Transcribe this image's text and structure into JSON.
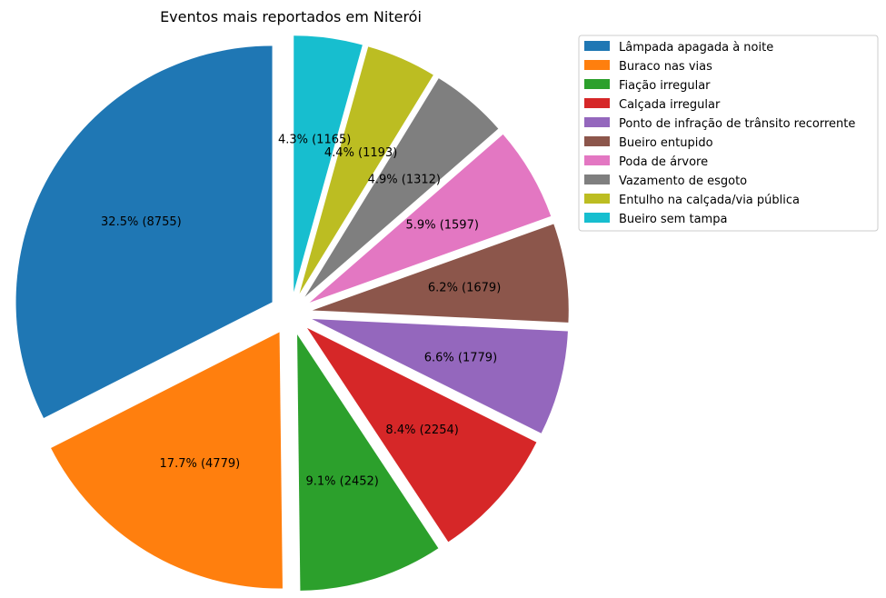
{
  "chart_data": {
    "type": "pie",
    "title": "Eventos mais reportados em Niterói",
    "legend_position": "upper-right-outside",
    "start_angle_deg": 90,
    "direction": "counterclockwise",
    "exploded": true,
    "slices": [
      {
        "name": "Lâmpada apagada à noite",
        "value": 8755,
        "label": "32.5% (8755)",
        "color": "#1f77b4"
      },
      {
        "name": "Buraco nas vias",
        "value": 4779,
        "label": "17.7% (4779)",
        "color": "#ff7f0e"
      },
      {
        "name": "Fiação irregular",
        "value": 2452,
        "label": "9.1% (2452)",
        "color": "#2ca02c"
      },
      {
        "name": "Calçada irregular",
        "value": 2254,
        "label": "8.4% (2254)",
        "color": "#d62728"
      },
      {
        "name": "Ponto de infração de trânsito recorrente",
        "value": 1779,
        "label": "6.6% (1779)",
        "color": "#9467bd"
      },
      {
        "name": "Bueiro entupido",
        "value": 1679,
        "label": "6.2% (1679)",
        "color": "#8c564b"
      },
      {
        "name": "Poda de árvore",
        "value": 1597,
        "label": "5.9% (1597)",
        "color": "#e377c2"
      },
      {
        "name": "Vazamento de esgoto",
        "value": 1312,
        "label": "4.9% (1312)",
        "color": "#7f7f7f"
      },
      {
        "name": "Entulho na calçada/via pública",
        "value": 1193,
        "label": "4.4% (1193)",
        "color": "#bcbd22"
      },
      {
        "name": "Bueiro sem tampa",
        "value": 1165,
        "label": "4.3% (1165)",
        "color": "#17becf"
      }
    ]
  }
}
